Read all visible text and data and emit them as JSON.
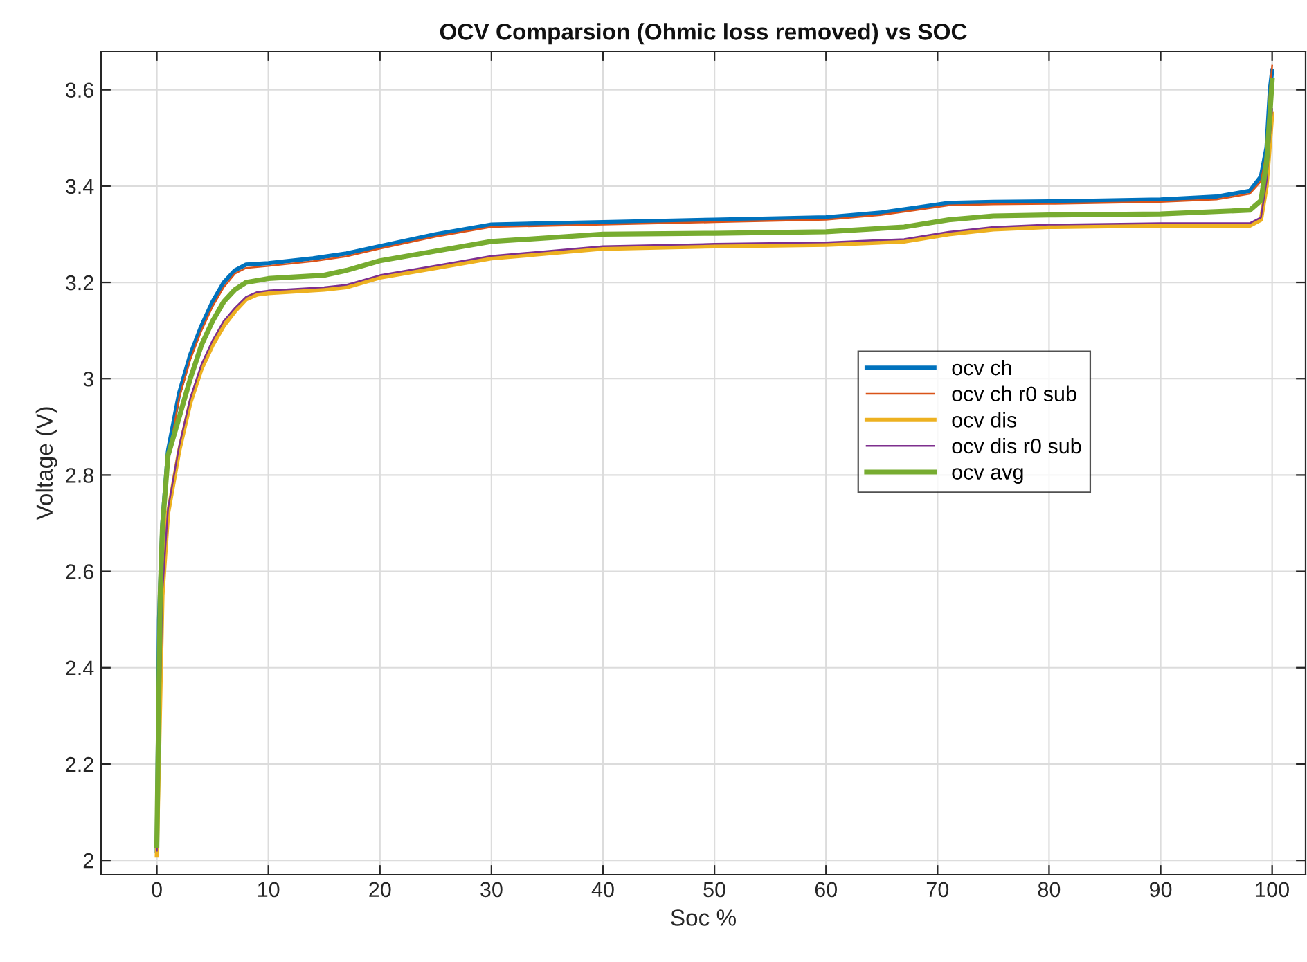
{
  "chart_data": {
    "type": "line",
    "title": "OCV Comparsion (Ohmic loss removed) vs SOC",
    "xlabel": "Soc %",
    "ylabel": "Voltage (V)",
    "xlim": [
      -5,
      103
    ],
    "xticks": [
      0,
      10,
      20,
      30,
      40,
      50,
      60,
      70,
      80,
      90,
      100
    ],
    "ylim": [
      1.97,
      3.68
    ],
    "yticks": [
      2,
      2.2,
      2.4,
      2.6,
      2.8,
      3,
      3.2,
      3.4,
      3.6
    ],
    "grid": true,
    "legend": "center right",
    "marker": "none",
    "line_style": "solid",
    "series": [
      {
        "name": "ocv ch",
        "color": "#0072bd",
        "x": [
          0,
          0.2,
          0.5,
          1,
          2,
          3,
          4,
          5,
          6,
          7,
          8,
          10,
          14,
          17,
          20,
          25,
          30,
          40,
          50,
          60,
          65,
          68,
          71,
          75,
          80,
          90,
          95,
          98,
          99,
          99.5,
          99.8,
          100
        ],
        "values": [
          2.02,
          2.5,
          2.7,
          2.85,
          2.97,
          3.05,
          3.11,
          3.16,
          3.2,
          3.225,
          3.237,
          3.24,
          3.25,
          3.26,
          3.275,
          3.3,
          3.32,
          3.325,
          3.33,
          3.335,
          3.345,
          3.355,
          3.365,
          3.367,
          3.368,
          3.372,
          3.378,
          3.39,
          3.42,
          3.48,
          3.6,
          3.64
        ]
      },
      {
        "name": "ocv ch r0 sub",
        "color": "#d95319",
        "x": [
          0,
          0.2,
          0.5,
          1,
          2,
          3,
          4,
          5,
          6,
          7,
          8,
          10,
          14,
          17,
          20,
          25,
          30,
          40,
          50,
          60,
          65,
          68,
          71,
          75,
          80,
          90,
          95,
          98,
          99,
          99.5,
          99.8,
          100
        ],
        "values": [
          2.01,
          2.48,
          2.68,
          2.83,
          2.96,
          3.04,
          3.1,
          3.15,
          3.19,
          3.218,
          3.23,
          3.234,
          3.244,
          3.254,
          3.27,
          3.295,
          3.315,
          3.32,
          3.325,
          3.33,
          3.34,
          3.35,
          3.36,
          3.362,
          3.363,
          3.367,
          3.372,
          3.384,
          3.41,
          3.47,
          3.6,
          3.65
        ]
      },
      {
        "name": "ocv dis",
        "color": "#edb120",
        "x": [
          0,
          0.5,
          1,
          2,
          3,
          4,
          5,
          6,
          7,
          8,
          9,
          10,
          15,
          17,
          20,
          25,
          30,
          40,
          50,
          60,
          67,
          71,
          75,
          80,
          90,
          98,
          99,
          99.5,
          100
        ],
        "values": [
          2.01,
          2.55,
          2.72,
          2.85,
          2.95,
          3.02,
          3.07,
          3.11,
          3.14,
          3.165,
          3.175,
          3.178,
          3.185,
          3.19,
          3.21,
          3.23,
          3.25,
          3.27,
          3.275,
          3.278,
          3.285,
          3.3,
          3.31,
          3.315,
          3.318,
          3.318,
          3.33,
          3.4,
          3.55
        ]
      },
      {
        "name": "ocv dis r0 sub",
        "color": "#7e2f8e",
        "x": [
          0,
          0.5,
          1,
          2,
          3,
          4,
          5,
          6,
          7,
          8,
          9,
          10,
          15,
          17,
          20,
          25,
          30,
          40,
          50,
          60,
          67,
          71,
          75,
          80,
          90,
          98,
          99,
          99.5,
          100
        ],
        "values": [
          2.02,
          2.56,
          2.73,
          2.86,
          2.96,
          3.03,
          3.08,
          3.12,
          3.147,
          3.17,
          3.18,
          3.183,
          3.19,
          3.195,
          3.215,
          3.235,
          3.255,
          3.275,
          3.28,
          3.283,
          3.29,
          3.305,
          3.315,
          3.32,
          3.323,
          3.323,
          3.335,
          3.41,
          3.56
        ]
      },
      {
        "name": "ocv avg",
        "color": "#77ac30",
        "x": [
          0,
          0.3,
          0.5,
          1,
          2,
          3,
          4,
          5,
          6,
          7,
          8,
          10,
          15,
          17,
          20,
          25,
          30,
          40,
          50,
          60,
          67,
          71,
          75,
          80,
          90,
          98,
          99,
          99.5,
          99.8,
          100
        ],
        "values": [
          2.03,
          2.55,
          2.69,
          2.84,
          2.92,
          3.0,
          3.07,
          3.12,
          3.16,
          3.185,
          3.2,
          3.208,
          3.215,
          3.225,
          3.245,
          3.265,
          3.285,
          3.3,
          3.302,
          3.305,
          3.315,
          3.33,
          3.338,
          3.34,
          3.342,
          3.35,
          3.37,
          3.45,
          3.55,
          3.62
        ]
      }
    ]
  }
}
